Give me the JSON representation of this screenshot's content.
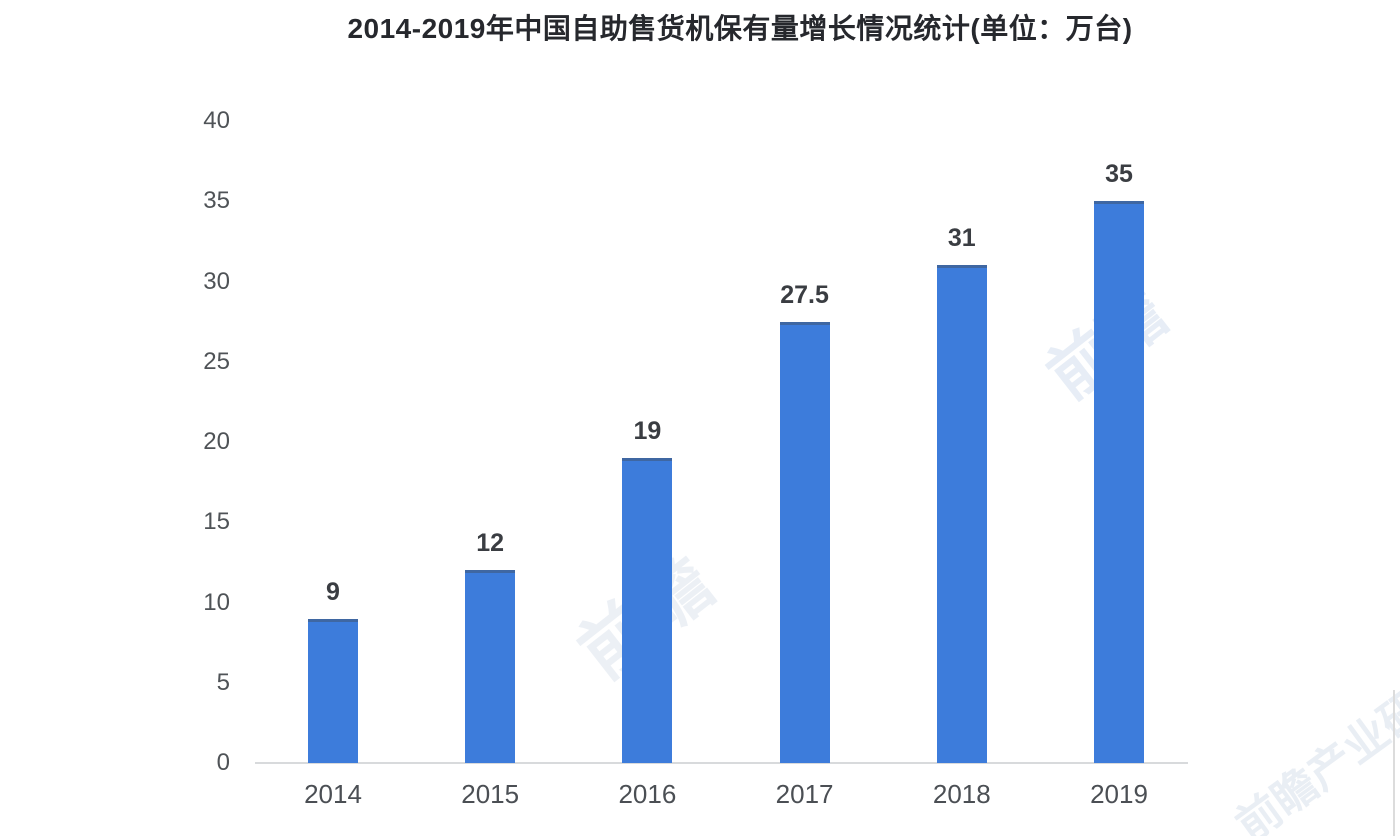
{
  "title": "2014-2019年中国自助售货机保有量增长情况统计(单位：万台)",
  "chart_data": {
    "type": "bar",
    "title": "2014-2019年中国自助售货机保有量增长情况统计(单位：万台)",
    "categories": [
      "2014",
      "2015",
      "2016",
      "2017",
      "2018",
      "2019"
    ],
    "values": [
      9,
      12,
      19,
      27.5,
      31,
      35
    ],
    "value_labels": [
      "9",
      "12",
      "19",
      "27.5",
      "31",
      "35"
    ],
    "unit": "万台",
    "xlabel": "",
    "ylabel": "",
    "ylim": [
      0,
      40
    ],
    "yticks": [
      0,
      5,
      10,
      15,
      20,
      25,
      30,
      35,
      40
    ],
    "grid": false,
    "legend": "none",
    "colors": {
      "bar": "#3d7cdb",
      "bar_top_edge": "rgba(66,85,114,0.55)",
      "axis_line": "#d8dadc",
      "title_text": "#26282d",
      "tick_text": "#4f5357",
      "value_text": "#3a3d42"
    }
  },
  "watermarks": [
    {
      "text": "前瞻"
    },
    {
      "text": "前瞻"
    },
    {
      "text": "前瞻产业研究院"
    }
  ]
}
